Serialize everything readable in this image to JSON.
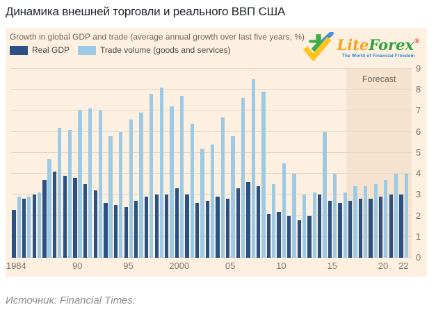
{
  "page": {
    "title": "Динамика внешней торговли и реального ВВП США",
    "source": "Источник: Financial Times."
  },
  "panel": {
    "subtitle": "Growth in global GDP and trade (average annual growth over last five years, %)",
    "legend": [
      {
        "label": "Real GDP",
        "color": "#2b5184"
      },
      {
        "label": "Trade volume (goods and services)",
        "color": "#9ccae4"
      }
    ]
  },
  "logo": {
    "brand_lite": "Lite",
    "brand_forex": "Forex",
    "registered": "®",
    "tagline": "The World of Financial Freedom",
    "colors": {
      "lite": "#f6a21d",
      "forex": "#2fa33c",
      "tagline": "#1d86d8",
      "icon_green": "#3fae49",
      "icon_yellow": "#ffc41f",
      "icon_blue": "#4a90d9"
    }
  },
  "chart_data": {
    "type": "bar",
    "title": "Growth in global GDP and trade (average annual growth over last five years, %)",
    "categories": [
      1984,
      1985,
      1986,
      1987,
      1988,
      1989,
      1990,
      1991,
      1992,
      1993,
      1994,
      1995,
      1996,
      1997,
      1998,
      1999,
      2000,
      2001,
      2002,
      2003,
      2004,
      2005,
      2006,
      2007,
      2008,
      2009,
      2010,
      2011,
      2012,
      2013,
      2014,
      2015,
      2016,
      2017,
      2018,
      2019,
      2020,
      2021,
      2022
    ],
    "series": [
      {
        "name": "Real GDP",
        "color": "#2b5184",
        "values": [
          2.3,
          2.8,
          3.0,
          3.7,
          4.1,
          3.9,
          3.8,
          3.5,
          3.2,
          2.6,
          2.5,
          2.4,
          2.7,
          2.9,
          3.0,
          3.0,
          3.3,
          3.0,
          2.6,
          2.7,
          2.9,
          2.8,
          3.3,
          3.6,
          3.4,
          2.1,
          2.2,
          2.0,
          1.8,
          2.0,
          3.0,
          2.7,
          2.6,
          2.7,
          2.8,
          2.8,
          2.9,
          3.0,
          3.0
        ]
      },
      {
        "name": "Trade volume (goods and services)",
        "color": "#9ccae4",
        "values": [
          2.9,
          2.9,
          3.1,
          4.7,
          6.2,
          6.1,
          7.0,
          7.1,
          7.0,
          5.8,
          6.0,
          6.6,
          6.9,
          7.8,
          8.1,
          7.2,
          7.7,
          6.4,
          5.2,
          5.4,
          6.7,
          5.8,
          7.6,
          8.5,
          7.9,
          3.5,
          4.5,
          4.0,
          3.0,
          3.1,
          6.0,
          4.0,
          3.1,
          3.4,
          3.4,
          3.5,
          3.7,
          4.0,
          4.0
        ]
      }
    ],
    "ylim": [
      0,
      9
    ],
    "yticks": [
      0,
      1,
      2,
      3,
      4,
      5,
      6,
      7,
      8,
      9
    ],
    "xticks": [
      {
        "label": "1984",
        "year": 1984
      },
      {
        "label": "90",
        "year": 1990
      },
      {
        "label": "95",
        "year": 1995
      },
      {
        "label": "2000",
        "year": 2000
      },
      {
        "label": "05",
        "year": 2005
      },
      {
        "label": "10",
        "year": 2010
      },
      {
        "label": "15",
        "year": 2015
      },
      {
        "label": "20",
        "year": 2020
      },
      {
        "label": "22",
        "year": 2022
      }
    ],
    "forecast": {
      "label": "Forecast",
      "start_year": 2017,
      "end_year": 2022
    },
    "grid": true,
    "legend_position": "top-left",
    "background": "#fdf0e0",
    "forecast_background": "#f6e3cf"
  }
}
